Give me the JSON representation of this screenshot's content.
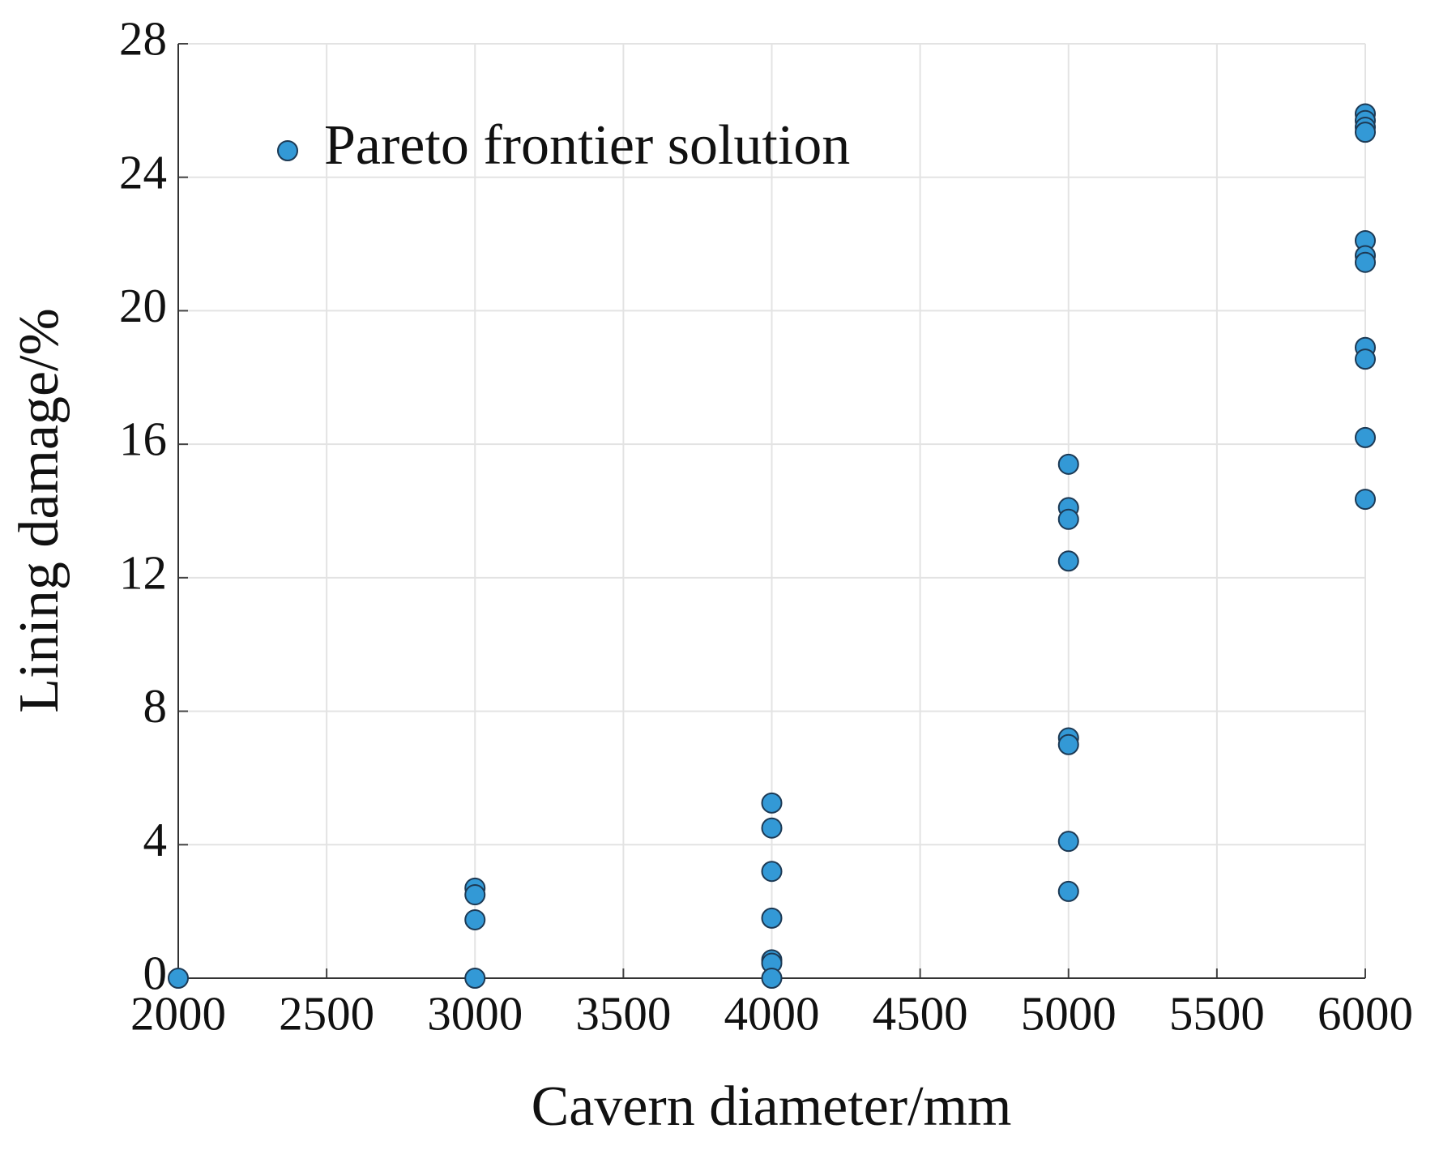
{
  "chart_data": {
    "type": "scatter",
    "x_label": "Cavern diameter/mm",
    "y_label": "Lining damage/%",
    "xlim": [
      2000,
      6000
    ],
    "xticks": [
      2000,
      2500,
      3000,
      3500,
      4000,
      4500,
      5000,
      5500,
      6000
    ],
    "ylim": [
      0,
      28
    ],
    "yticks": [
      0,
      4,
      8,
      12,
      16,
      20,
      24,
      28
    ],
    "grid": true,
    "legend": "upper left",
    "series": [
      {
        "name": "Pareto frontier solution",
        "color": "#3399d6",
        "x": [
          2000,
          3000,
          3000,
          3000,
          3000,
          4000,
          4000,
          4000,
          4000,
          4000,
          4000,
          4000,
          5000,
          5000,
          5000,
          5000,
          5000,
          5000,
          5000,
          5000,
          6000,
          6000,
          6000,
          6000,
          6000,
          6000,
          6000,
          6000,
          6000,
          6000,
          6000
        ],
        "values": [
          0,
          2.7,
          2.5,
          1.75,
          0,
          5.25,
          4.5,
          3.2,
          1.8,
          0.55,
          0.45,
          0,
          15.4,
          14.1,
          13.75,
          12.5,
          7.2,
          7.0,
          4.1,
          2.6,
          25.9,
          25.7,
          25.5,
          25.35,
          22.1,
          21.65,
          21.45,
          18.9,
          18.55,
          16.2,
          14.35
        ]
      }
    ]
  }
}
